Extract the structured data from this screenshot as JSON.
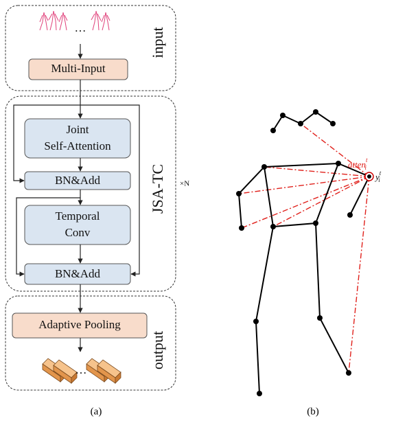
{
  "panel_a": {
    "input_label": "input",
    "input_ellipsis": "…",
    "multi_input": "Multi-Input",
    "block_label": "JSA-TC",
    "repeat": "×N",
    "joint_attention": [
      "Joint",
      "Self-Attention"
    ],
    "bn_add_1": "BN&Add",
    "temporal_conv": [
      "Temporal",
      "Conv"
    ],
    "bn_add_2": "BN&Add",
    "pooling": "Adaptive Pooling",
    "output_ellipsis": "…",
    "output_label": "output",
    "caption": "(a)"
  },
  "panel_b": {
    "attention": {
      "base": "atten",
      "sub": "i",
      "sup": "t"
    },
    "node": {
      "base": "y",
      "sub": "i",
      "sup": "t"
    },
    "caption": "(b)"
  }
}
